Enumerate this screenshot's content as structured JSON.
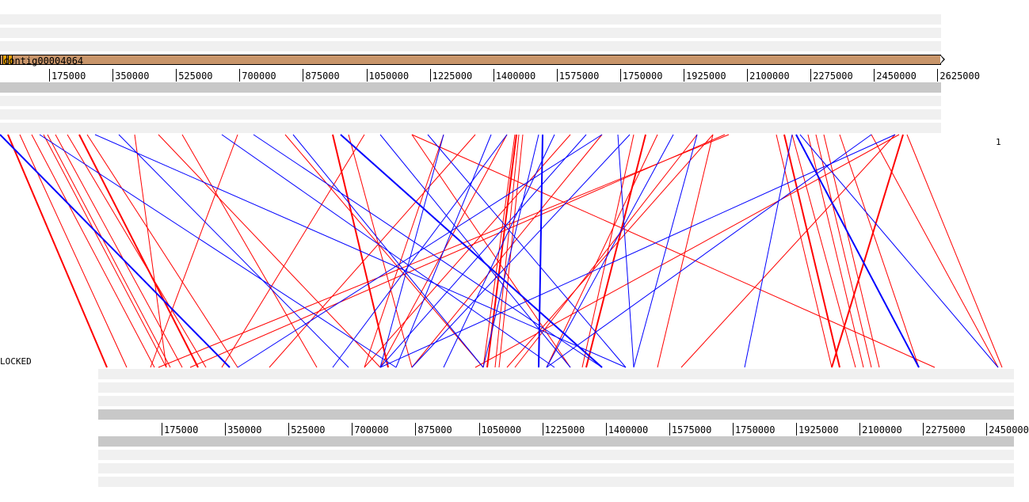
{
  "top_track": {
    "contig_name": "contig00004064",
    "ticks": [
      "175000",
      "350000",
      "525000",
      "700000",
      "875000",
      "1050000",
      "1225000",
      "1400000",
      "1575000",
      "1750000",
      "1925000",
      "2100000",
      "2275000",
      "2450000",
      "2625000"
    ],
    "contig_color": "#c8956a"
  },
  "bottom_track": {
    "ticks": [
      "175000",
      "350000",
      "525000",
      "700000",
      "875000",
      "1050000",
      "1225000",
      "1400000",
      "1575000",
      "1750000",
      "1925000",
      "2100000",
      "2275000",
      "2450000"
    ]
  },
  "labels": {
    "row_index": "1",
    "lock_state": "LOCKED"
  },
  "colors": {
    "forward_match": "#ff0000",
    "reverse_match": "#0000ff"
  },
  "links": {
    "forward": [
      [
        10,
        135
      ],
      [
        25,
        160
      ],
      [
        40,
        195
      ],
      [
        55,
        210
      ],
      [
        60,
        215
      ],
      [
        70,
        230
      ],
      [
        85,
        260
      ],
      [
        100,
        250
      ],
      [
        110,
        300
      ],
      [
        170,
        210
      ],
      [
        200,
        480
      ],
      [
        230,
        400
      ],
      [
        300,
        190
      ],
      [
        360,
        610
      ],
      [
        420,
        490
      ],
      [
        440,
        520
      ],
      [
        460,
        280
      ],
      [
        520,
        720
      ],
      [
        560,
        460
      ],
      [
        600,
        340
      ],
      [
        650,
        610
      ],
      [
        652,
        615
      ],
      [
        655,
        625
      ],
      [
        660,
        630
      ],
      [
        640,
        480
      ],
      [
        720,
        460
      ],
      [
        760,
        520
      ],
      [
        800,
        735
      ],
      [
        815,
        740
      ],
      [
        830,
        690
      ],
      [
        880,
        650
      ],
      [
        900,
        640
      ],
      [
        915,
        240
      ],
      [
        920,
        200
      ],
      [
        980,
        1050
      ],
      [
        990,
        1060
      ],
      [
        1000,
        1080
      ],
      [
        1020,
        1090
      ],
      [
        1030,
        1100
      ],
      [
        1040,
        1110
      ],
      [
        1060,
        1160
      ],
      [
        1100,
        1260
      ],
      [
        1140,
        1050
      ],
      [
        1145,
        1265
      ],
      [
        520,
        1180
      ],
      [
        900,
        830
      ],
      [
        1130,
        860
      ],
      [
        1135,
        600
      ]
    ],
    "reverse": [
      [
        0,
        290
      ],
      [
        50,
        500
      ],
      [
        120,
        790
      ],
      [
        150,
        440
      ],
      [
        280,
        700
      ],
      [
        320,
        760
      ],
      [
        370,
        610
      ],
      [
        430,
        760
      ],
      [
        480,
        720
      ],
      [
        540,
        790
      ],
      [
        560,
        480
      ],
      [
        620,
        500
      ],
      [
        640,
        420
      ],
      [
        680,
        610
      ],
      [
        685,
        680
      ],
      [
        700,
        560
      ],
      [
        740,
        480
      ],
      [
        760,
        300
      ],
      [
        780,
        800
      ],
      [
        795,
        520
      ],
      [
        1000,
        940
      ],
      [
        1005,
        1160
      ],
      [
        1010,
        1260
      ],
      [
        1100,
        690
      ],
      [
        1130,
        480
      ],
      [
        880,
        800
      ],
      [
        850,
        690
      ]
    ]
  }
}
